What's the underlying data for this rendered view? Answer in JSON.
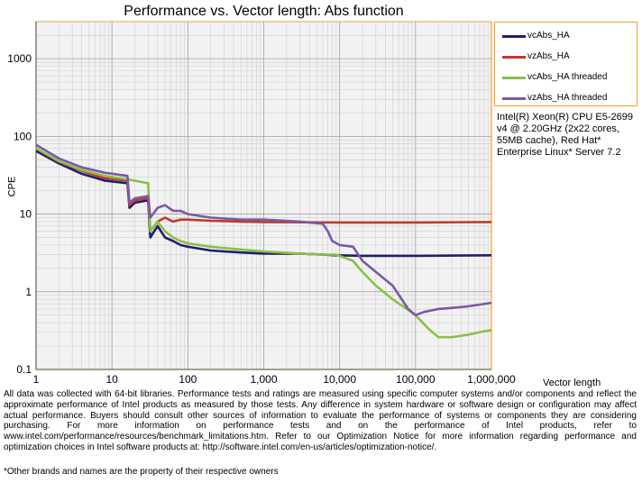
{
  "chart_data": {
    "type": "line",
    "title": "Performance vs. Vector length: Abs function",
    "xlabel": "Vector length",
    "ylabel": "CPE",
    "xscale": "log",
    "yscale": "log",
    "xlim": [
      1,
      1000000
    ],
    "ylim": [
      0.1,
      3000
    ],
    "x_ticks": [
      "1",
      "10",
      "100",
      "1,000",
      "10,000",
      "100,000",
      "1,000,000"
    ],
    "y_ticks": [
      "0.1",
      "1",
      "10",
      "100",
      "1000"
    ],
    "grid": true,
    "legend_position": "right",
    "series": [
      {
        "name": "vcAbs_HA",
        "color": "#1f1f6e",
        "points": [
          [
            1,
            65
          ],
          [
            2,
            45
          ],
          [
            4,
            33
          ],
          [
            8,
            27
          ],
          [
            16,
            25
          ],
          [
            17,
            12
          ],
          [
            20,
            14
          ],
          [
            30,
            15
          ],
          [
            32,
            5
          ],
          [
            40,
            7
          ],
          [
            50,
            5
          ],
          [
            64,
            4.5
          ],
          [
            80,
            4
          ],
          [
            100,
            3.8
          ],
          [
            200,
            3.4
          ],
          [
            500,
            3.2
          ],
          [
            1000,
            3.1
          ],
          [
            3000,
            3.1
          ],
          [
            6000,
            3.0
          ],
          [
            9000,
            2.95
          ],
          [
            20000,
            2.9
          ],
          [
            100000,
            2.9
          ],
          [
            1000000,
            2.95
          ]
        ]
      },
      {
        "name": "vzAbs_HA",
        "color": "#c0392b",
        "points": [
          [
            1,
            70
          ],
          [
            2,
            47
          ],
          [
            4,
            36
          ],
          [
            8,
            29
          ],
          [
            16,
            27
          ],
          [
            17,
            13
          ],
          [
            20,
            15
          ],
          [
            30,
            16
          ],
          [
            32,
            6
          ],
          [
            40,
            8
          ],
          [
            50,
            9
          ],
          [
            64,
            8
          ],
          [
            80,
            8.5
          ],
          [
            100,
            8.5
          ],
          [
            200,
            8.2
          ],
          [
            500,
            8
          ],
          [
            1000,
            7.9
          ],
          [
            10000,
            7.8
          ],
          [
            100000,
            7.8
          ],
          [
            1000000,
            7.9
          ]
        ]
      },
      {
        "name": "vcAbs_HA threaded",
        "color": "#8cbf4a",
        "points": [
          [
            1,
            70
          ],
          [
            2,
            48
          ],
          [
            4,
            37
          ],
          [
            8,
            31
          ],
          [
            16,
            28
          ],
          [
            30,
            25
          ],
          [
            32,
            6
          ],
          [
            40,
            8
          ],
          [
            50,
            6
          ],
          [
            64,
            5
          ],
          [
            80,
            4.5
          ],
          [
            100,
            4.2
          ],
          [
            200,
            3.8
          ],
          [
            500,
            3.5
          ],
          [
            1000,
            3.3
          ],
          [
            3000,
            3.1
          ],
          [
            6000,
            3.0
          ],
          [
            9000,
            3.0
          ],
          [
            15000,
            2.5
          ],
          [
            20000,
            1.8
          ],
          [
            30000,
            1.2
          ],
          [
            50000,
            0.8
          ],
          [
            100000,
            0.5
          ],
          [
            150000,
            0.33
          ],
          [
            200000,
            0.26
          ],
          [
            300000,
            0.26
          ],
          [
            500000,
            0.28
          ],
          [
            800000,
            0.31
          ],
          [
            1000000,
            0.32
          ]
        ]
      },
      {
        "name": "vzAbs_HA threaded",
        "color": "#7b58a6",
        "points": [
          [
            1,
            78
          ],
          [
            2,
            52
          ],
          [
            4,
            40
          ],
          [
            8,
            34
          ],
          [
            16,
            31
          ],
          [
            17,
            14
          ],
          [
            20,
            16
          ],
          [
            30,
            17
          ],
          [
            32,
            9
          ],
          [
            40,
            12
          ],
          [
            50,
            13
          ],
          [
            64,
            11
          ],
          [
            80,
            11
          ],
          [
            100,
            10
          ],
          [
            200,
            9
          ],
          [
            500,
            8.5
          ],
          [
            1000,
            8.5
          ],
          [
            3000,
            8
          ],
          [
            6000,
            7.5
          ],
          [
            7000,
            6
          ],
          [
            8000,
            4.5
          ],
          [
            10000,
            4
          ],
          [
            15000,
            3.8
          ],
          [
            20000,
            2.5
          ],
          [
            30000,
            1.8
          ],
          [
            50000,
            1.2
          ],
          [
            80000,
            0.6
          ],
          [
            100000,
            0.5
          ],
          [
            130000,
            0.55
          ],
          [
            200000,
            0.6
          ],
          [
            300000,
            0.62
          ],
          [
            500000,
            0.65
          ],
          [
            1000000,
            0.72
          ]
        ]
      }
    ]
  },
  "cpu_note": "Intel(R) Xeon(R) CPU E5-2699 v4 @ 2.20GHz (2x22 cores, 55MB cache), Red Hat* Enterprise Linux* Server 7.2",
  "footer_note": "All data was collected with 64-bit libraries. Performance tests and ratings are measured using specific computer systems and/or components and reflect the approximate performance of Intel products as measured by those tests. Any difference in system hardware or software design or configuration may affect actual performance. Buyers should consult other sources of information to evaluate the performance of systems or components they are considering purchasing. For more information on performance tests and on the performance of Intel products, refer to www.intel.com/performance/resources/benchmark_limitations.htm. Refer to our Optimization Notice for more information regarding performance and optimization choices in Intel software products at: http://software.intel.com/en-us/articles/optimization-notice/.",
  "trademark_note": "*Other brands and names are the property of their respective owners"
}
